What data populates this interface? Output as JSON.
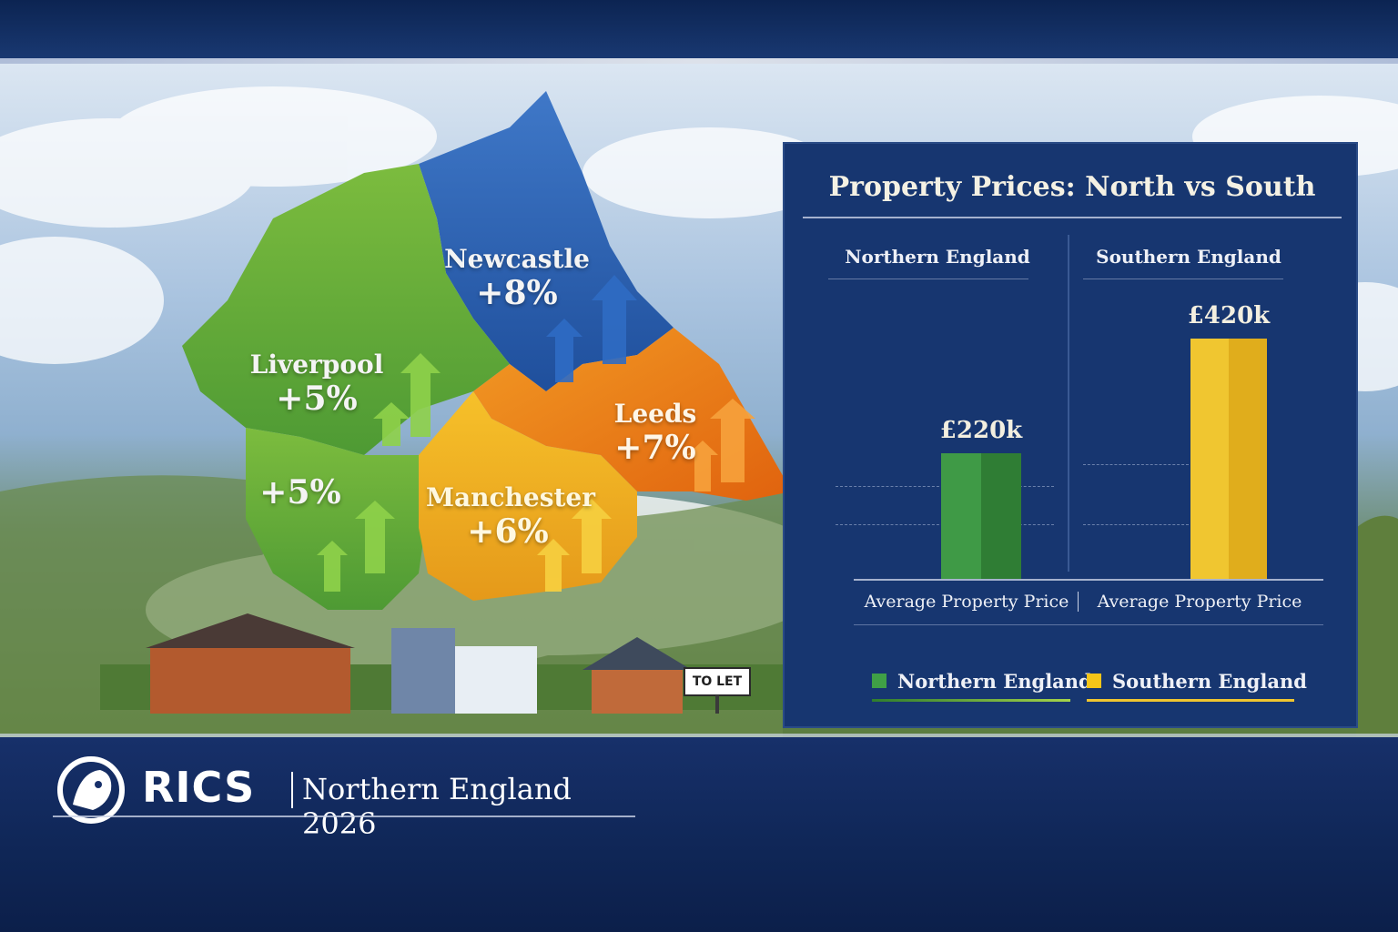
{
  "map": {
    "regions": [
      {
        "name": "Newcastle",
        "change": "+8%"
      },
      {
        "name": "Liverpool",
        "change": "+5%"
      },
      {
        "name": "",
        "change": "+5%"
      },
      {
        "name": "Leeds",
        "change": "+7%"
      },
      {
        "name": "Manchester",
        "change": "+6%"
      }
    ],
    "sign_text": "TO LET"
  },
  "panel": {
    "title": "Property Prices: North vs South",
    "col_north": "Northern England",
    "col_south": "Southern England",
    "axis_label_north": "Average Property Price",
    "axis_label_south": "Average Property Price"
  },
  "chart_data": {
    "type": "bar",
    "title": "Property Prices: North vs South",
    "categories": [
      "Northern England",
      "Southern England"
    ],
    "values": [
      220,
      420
    ],
    "value_labels": [
      "£220k",
      "£420k"
    ],
    "xlabel": "Average Property Price",
    "unit": "£k",
    "ylim": [
      0,
      420
    ],
    "grid": true,
    "legend": {
      "position": "bottom",
      "entries": [
        "Northern England",
        "Southern England"
      ]
    },
    "colors": {
      "north": "#3f9a46",
      "south": "#f0c630"
    }
  },
  "brand": {
    "logo_text": "RICS",
    "subtitle": "Northern England 2026"
  }
}
